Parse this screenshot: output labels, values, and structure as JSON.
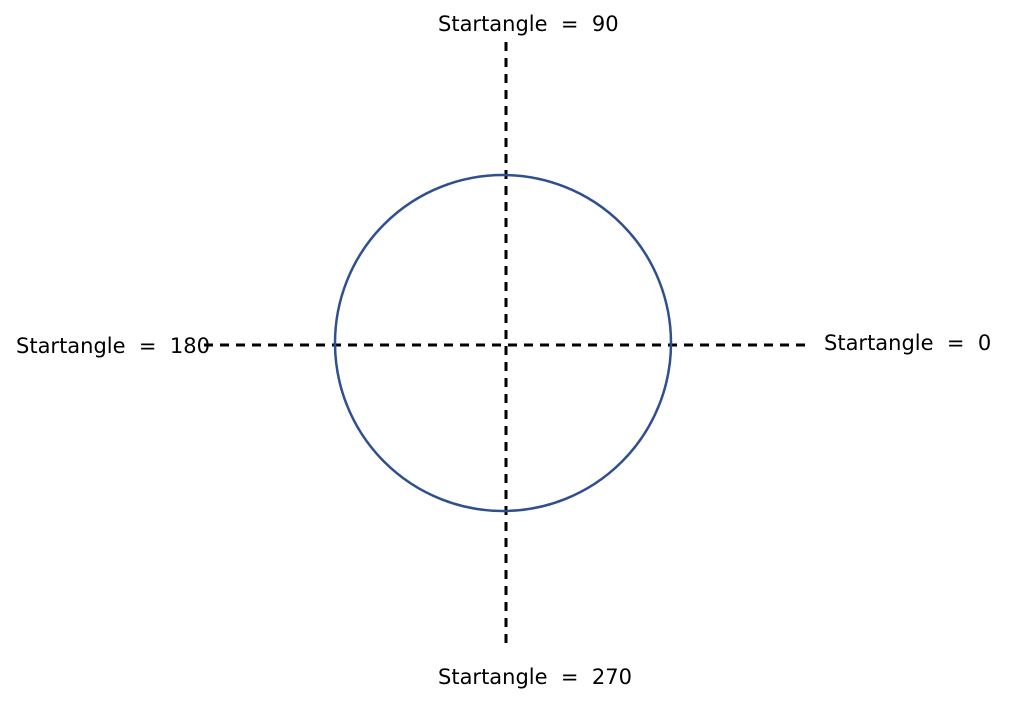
{
  "diagram": {
    "labels": {
      "top": "Startangle  =  90",
      "left": "Startangle  =  180",
      "right": "Startangle  =  0",
      "bottom": "Startangle  =  270"
    },
    "colors": {
      "circle_stroke": "#2f4f8f",
      "axis_stroke": "#000000",
      "background": "#ffffff"
    }
  }
}
